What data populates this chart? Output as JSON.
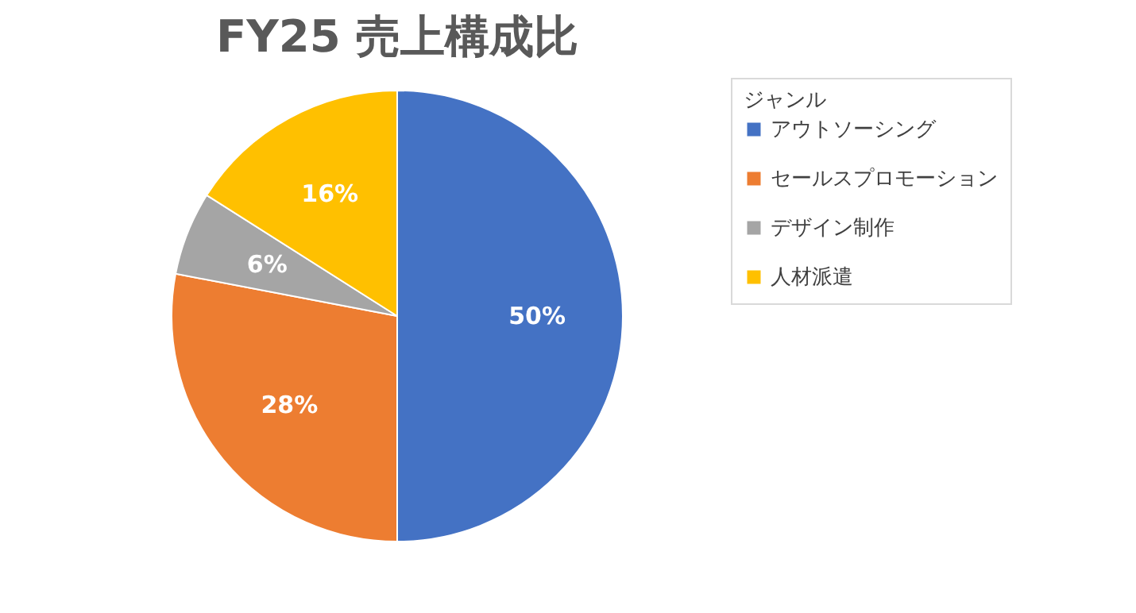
{
  "chart_data": {
    "type": "pie",
    "title": "FY25 売上構成比",
    "legend_title": "ジャンル",
    "categories": [
      "アウトソーシング",
      "セールスプロモーション",
      "デザイン制作",
      "人材派遣"
    ],
    "values": [
      50,
      28,
      6,
      16
    ],
    "colors": [
      "#4472c4",
      "#ed7d31",
      "#a5a5a5",
      "#ffc000"
    ],
    "value_labels": [
      "50%",
      "28%",
      "6%",
      "16%"
    ],
    "legend": "right"
  }
}
